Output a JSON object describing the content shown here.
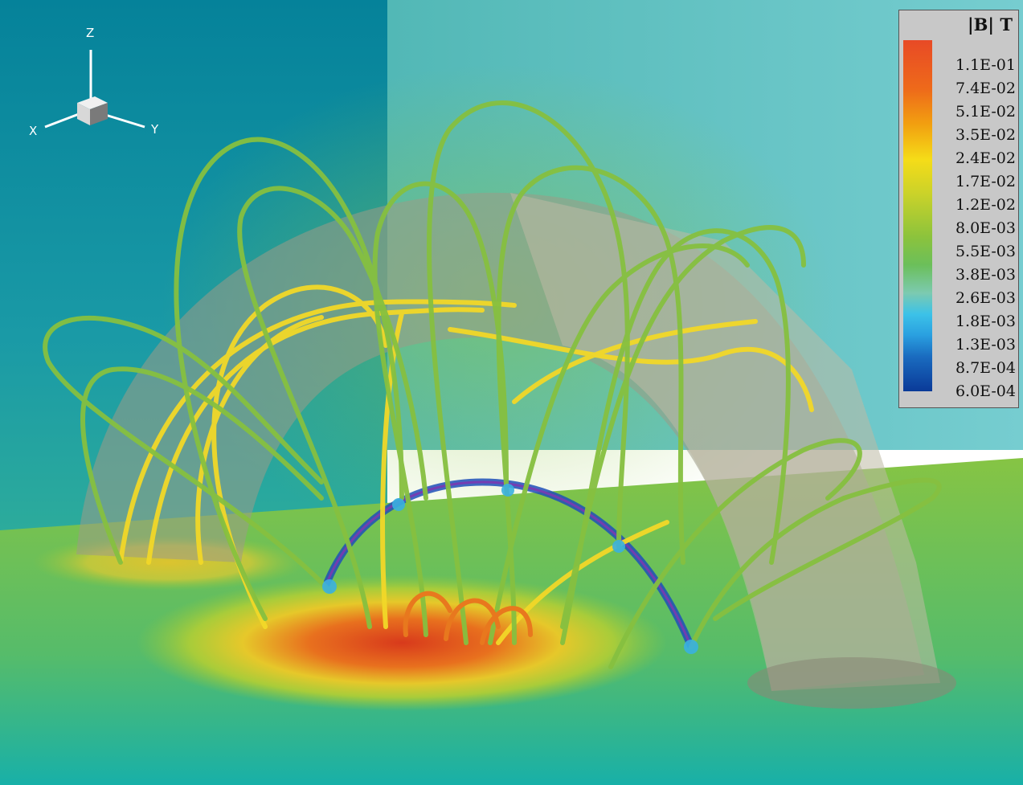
{
  "legend": {
    "title": "|B| T",
    "labels": [
      "1.1E-01",
      "7.4E-02",
      "5.1E-02",
      "3.5E-02",
      "2.4E-02",
      "1.7E-02",
      "1.2E-02",
      "8.0E-03",
      "5.5E-03",
      "3.8E-03",
      "2.6E-03",
      "1.8E-03",
      "1.3E-03",
      "8.7E-04",
      "6.0E-04"
    ]
  },
  "axes": {
    "z": "Z",
    "x": "X",
    "y": "Y"
  },
  "colors": {
    "background_left": "#04788e",
    "background_right": "#5fc6c2",
    "floor_hot": "#d8401e",
    "floor_green": "#8cc43a",
    "line_yellow": "#f2dc2a",
    "line_green": "#7cbf44",
    "null_line": "#6a3aa8"
  }
}
